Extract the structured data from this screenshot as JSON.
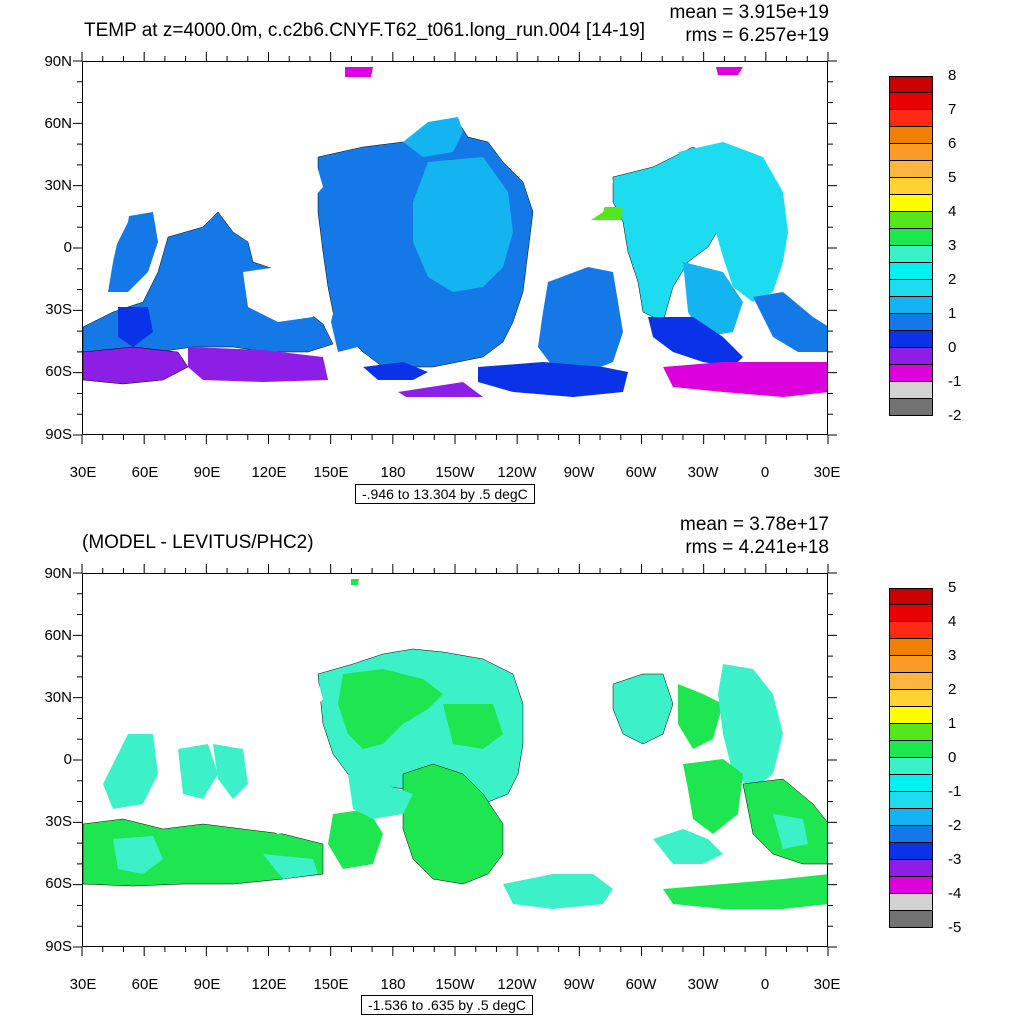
{
  "top_panel": {
    "title": "TEMP at z=4000.0m, c.c2b6.CNYF.T62_t061.long_run.004 [14-19]",
    "mean": "mean = 3.915e+19",
    "rms": "rms = 6.257e+19",
    "range": "-.946 to 13.304 by .5 degC",
    "colorbar": {
      "colors": [
        "#c80000",
        "#e60000",
        "#ff2a14",
        "#f08000",
        "#fa9a28",
        "#fdb441",
        "#fdd232",
        "#ffff00",
        "#55e61e",
        "#1ee650",
        "#3cf0c8",
        "#00f0f0",
        "#1edcf0",
        "#14b4f0",
        "#1478e6",
        "#0a32e6",
        "#8c1ee6",
        "#dc00dc",
        "#d2d2d2",
        "#737373"
      ],
      "labels": [
        "8",
        "7",
        "6",
        "5",
        "4",
        "3",
        "2",
        "1",
        "0",
        "-1",
        "-2"
      ]
    }
  },
  "bottom_panel": {
    "title": "(MODEL - LEVITUS/PHC2)",
    "mean": "mean = 3.78e+17",
    "rms": "rms = 4.241e+18",
    "range": "-1.536 to .635 by .5 degC",
    "colorbar": {
      "colors": [
        "#c80000",
        "#e60000",
        "#ff2a14",
        "#f08000",
        "#fa9a28",
        "#fdb441",
        "#fdd232",
        "#ffff00",
        "#55e61e",
        "#1ee650",
        "#3cf0c8",
        "#00f0f0",
        "#1edcf0",
        "#14b4f0",
        "#1478e6",
        "#0a32e6",
        "#8c1ee6",
        "#dc00dc",
        "#d2d2d2",
        "#737373"
      ],
      "labels": [
        "5",
        "4",
        "3",
        "2",
        "1",
        "0",
        "-1",
        "-2",
        "-3",
        "-4",
        "-5"
      ]
    }
  },
  "axes": {
    "lat_labels": [
      "90N",
      "60N",
      "30N",
      "0",
      "30S",
      "60S",
      "90S"
    ],
    "lon_labels": [
      "30E",
      "60E",
      "90E",
      "120E",
      "150E",
      "180",
      "150W",
      "120W",
      "90W",
      "60W",
      "30W",
      "0",
      "30E"
    ]
  }
}
